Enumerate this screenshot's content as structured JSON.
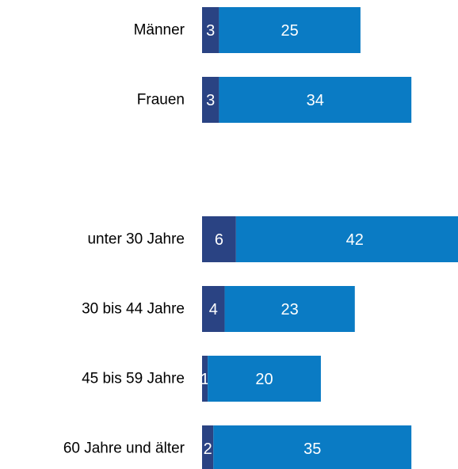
{
  "chart_data": {
    "type": "bar",
    "orientation": "horizontal",
    "stacked": true,
    "categories": [
      "Männer",
      "Frauen",
      null,
      "unter 30 Jahre",
      "30 bis 44 Jahre",
      "45 bis 59 Jahre",
      "60 Jahre und älter"
    ],
    "series": [
      {
        "color": "#2a4383",
        "values": [
          3,
          3,
          null,
          6,
          4,
          1,
          2
        ]
      },
      {
        "color": "#0a7bc4",
        "values": [
          25,
          34,
          null,
          42,
          23,
          20,
          35
        ]
      }
    ]
  }
}
